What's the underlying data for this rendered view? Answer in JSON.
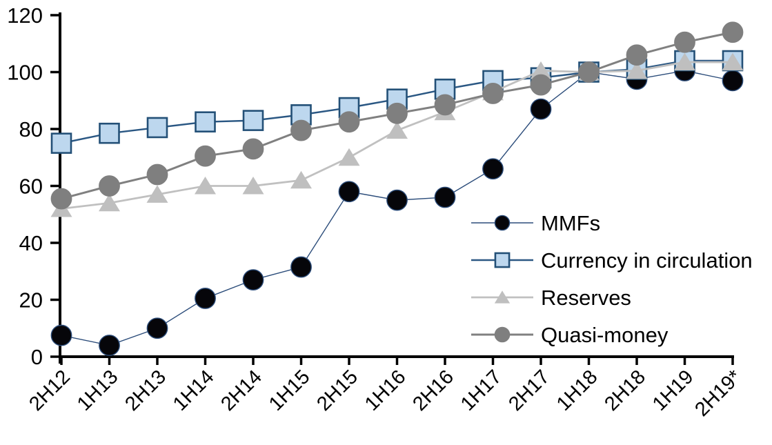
{
  "chart_data": {
    "type": "line",
    "title": "",
    "xlabel": "",
    "ylabel": "",
    "categories": [
      "2H12",
      "1H13",
      "2H13",
      "1H14",
      "2H14",
      "1H15",
      "2H15",
      "1H16",
      "2H16",
      "1H17",
      "2H17",
      "1H18",
      "2H18",
      "1H19",
      "2H19*"
    ],
    "series": [
      {
        "name": "MMFs",
        "marker": "circle",
        "line_color": "#2B4C7A",
        "marker_fill": "#06060A",
        "marker_stroke": "#2B4C7A",
        "line_width": 1.4,
        "values": [
          7.5,
          4,
          10,
          20.5,
          27,
          31.5,
          58,
          55,
          56,
          66,
          87,
          100,
          97.5,
          100.5,
          97
        ]
      },
      {
        "name": "Currency in circulation",
        "marker": "square",
        "line_color": "#2A5783",
        "marker_fill": "#BDD7EE",
        "marker_stroke": "#235077",
        "line_width": 2.5,
        "values": [
          75,
          78.5,
          80.5,
          82.5,
          83,
          85,
          87.5,
          90.5,
          94,
          97,
          98,
          100,
          101,
          104,
          104
        ]
      },
      {
        "name": "Reserves",
        "marker": "triangle",
        "line_color": "#C0C0C0",
        "marker_fill": "#BFBFBF",
        "marker_stroke": "#BFBFBF",
        "line_width": 2.8,
        "values": [
          52,
          54,
          57,
          60,
          60,
          62,
          70,
          79.5,
          86,
          93,
          100.5,
          100,
          100.5,
          103.5,
          103.5
        ]
      },
      {
        "name": "Quasi-money",
        "marker": "circle",
        "line_color": "#808080",
        "marker_fill": "#7F7F7F",
        "marker_stroke": "#7F7F7F",
        "line_width": 3,
        "values": [
          55.5,
          60,
          64,
          70.5,
          73,
          79.5,
          82.5,
          85.5,
          88.5,
          92.5,
          95.5,
          100,
          106,
          110.5,
          114
        ]
      }
    ],
    "y_axis": {
      "min": 0,
      "max": 120,
      "tick_step": 20,
      "ticks": [
        "0",
        "20",
        "40",
        "60",
        "80",
        "100",
        "120"
      ]
    },
    "x_axis": {
      "label_rotation_deg": -45
    },
    "ylim": [
      0,
      120
    ],
    "grid": false,
    "legend": {
      "position": "inside-right",
      "entries": [
        "MMFs",
        "Currency in circulation",
        "Reserves",
        "Quasi-money"
      ]
    },
    "axis_color": "#000000",
    "background": "#FFFFFF"
  }
}
